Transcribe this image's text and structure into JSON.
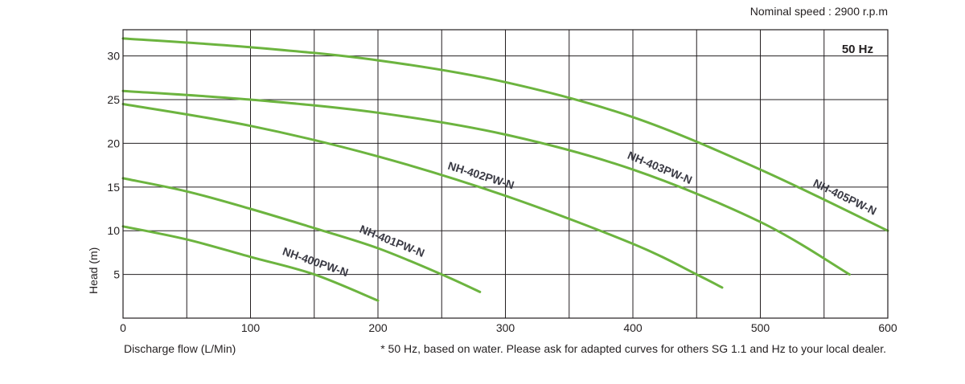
{
  "header": {
    "speed_note": "Nominal speed : 2900 r.p.m"
  },
  "footer": {
    "xlabel": "Discharge flow (L/Min)",
    "note": "* 50 Hz, based on water. Please ask for adapted curves for others SG 1.1 and Hz to your local dealer."
  },
  "chart_data": {
    "type": "line",
    "title": "",
    "frequency_label": "50 Hz",
    "xlabel": "Discharge flow (L/Min)",
    "ylabel": "Head (m)",
    "xlim": [
      0,
      600
    ],
    "ylim": [
      0,
      33
    ],
    "xticks": [
      0,
      100,
      200,
      300,
      400,
      500,
      600
    ],
    "yticks": [
      5,
      10,
      15,
      20,
      25,
      30
    ],
    "grid": true,
    "line_color": "#6cb43f",
    "series": [
      {
        "name": "NH-400PW-N",
        "x": [
          0,
          50,
          100,
          150,
          200
        ],
        "y": [
          10.5,
          9.0,
          7.0,
          5.0,
          2.0
        ]
      },
      {
        "name": "NH-401PW-N",
        "x": [
          0,
          50,
          100,
          150,
          200,
          250,
          280
        ],
        "y": [
          16.0,
          14.5,
          12.5,
          10.3,
          8.0,
          5.0,
          3.0
        ]
      },
      {
        "name": "NH-402PW-N",
        "x": [
          0,
          100,
          200,
          300,
          400,
          450,
          470
        ],
        "y": [
          24.5,
          22.0,
          18.5,
          14.0,
          8.5,
          5.0,
          3.5
        ]
      },
      {
        "name": "NH-403PW-N",
        "x": [
          0,
          100,
          200,
          300,
          400,
          500,
          570
        ],
        "y": [
          26.0,
          25.0,
          23.5,
          21.0,
          17.0,
          11.0,
          5.0
        ]
      },
      {
        "name": "NH-405PW-N",
        "x": [
          0,
          100,
          200,
          300,
          400,
          500,
          600
        ],
        "y": [
          32.0,
          31.0,
          29.5,
          27.0,
          23.0,
          17.0,
          10.0
        ]
      }
    ]
  }
}
